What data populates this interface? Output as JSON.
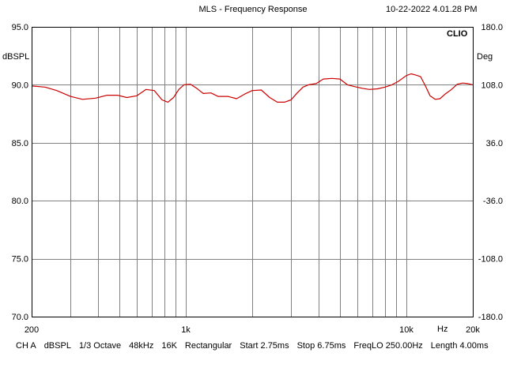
{
  "header": {
    "title": "MLS - Frequency Response",
    "timestamp": "10-22-2022 4.01.28 PM"
  },
  "brand": "CLIO",
  "footer": {
    "channel": "CH A",
    "unit": "dBSPL",
    "smoothing": "1/3 Octave",
    "sample_rate": "48kHz",
    "size": "16K",
    "window": "Rectangular",
    "start": "Start 2.75ms",
    "stop": "Stop 6.75ms",
    "freq_lo": "FreqLO 250.00Hz",
    "length": "Length 4.00ms"
  },
  "colors": {
    "curve": "#cc0000",
    "grid": "#808080",
    "frame": "#000000"
  },
  "chart_data": {
    "type": "line",
    "title": "MLS - Frequency Response",
    "xlabel": "Hz",
    "ylabel": "dBSPL",
    "y2label": "Deg",
    "xscale": "log",
    "xlim": [
      200,
      20000
    ],
    "ylim": [
      70,
      95
    ],
    "y2lim": [
      -180,
      180
    ],
    "grid": true,
    "x_tick_labels": [
      {
        "value": 200,
        "label": "200"
      },
      {
        "value": 1000,
        "label": "1k"
      },
      {
        "value": 10000,
        "label": "10k"
      },
      {
        "value": 20000,
        "label": "20k"
      }
    ],
    "x_gridlines": [
      300,
      400,
      500,
      600,
      700,
      800,
      900,
      1000,
      2000,
      3000,
      4000,
      5000,
      6000,
      7000,
      8000,
      9000,
      10000
    ],
    "y_ticks": [
      "95.0",
      "90.0",
      "85.0",
      "80.0",
      "75.0",
      "70.0"
    ],
    "y_tick_values": [
      95,
      90,
      85,
      80,
      75,
      70
    ],
    "y2_ticks": [
      "180.0",
      "108.0",
      "36.0",
      "-36.0",
      "-108.0",
      "-180.0"
    ],
    "series": [
      {
        "x": [
          200,
          230,
          260,
          300,
          340,
          390,
          440,
          490,
          540,
          600,
          660,
          720,
          780,
          830,
          880,
          930,
          980,
          1050,
          1120,
          1200,
          1300,
          1400,
          1550,
          1700,
          1850,
          2000,
          2200,
          2400,
          2600,
          2800,
          3000,
          3200,
          3400,
          3600,
          3900,
          4200,
          4600,
          5000,
          5400,
          5800,
          6300,
          6800,
          7400,
          8000,
          8600,
          9200,
          10000,
          10500,
          11000,
          11600,
          12200,
          12800,
          13500,
          14200,
          15000,
          16000,
          17000,
          18000,
          19000,
          20000
        ],
        "values": [
          89.9,
          89.8,
          89.5,
          89.0,
          88.75,
          88.85,
          89.1,
          89.1,
          88.9,
          89.05,
          89.6,
          89.5,
          88.7,
          88.5,
          88.9,
          89.6,
          90.0,
          90.05,
          89.7,
          89.25,
          89.3,
          89.0,
          89.0,
          88.8,
          89.2,
          89.5,
          89.55,
          88.9,
          88.5,
          88.5,
          88.7,
          89.3,
          89.8,
          90.0,
          90.1,
          90.5,
          90.55,
          90.5,
          90.0,
          89.85,
          89.7,
          89.6,
          89.65,
          89.8,
          90.0,
          90.3,
          90.8,
          90.95,
          90.85,
          90.7,
          89.9,
          89.05,
          88.75,
          88.8,
          89.2,
          89.6,
          90.05,
          90.15,
          90.1,
          90.0
        ]
      }
    ]
  }
}
